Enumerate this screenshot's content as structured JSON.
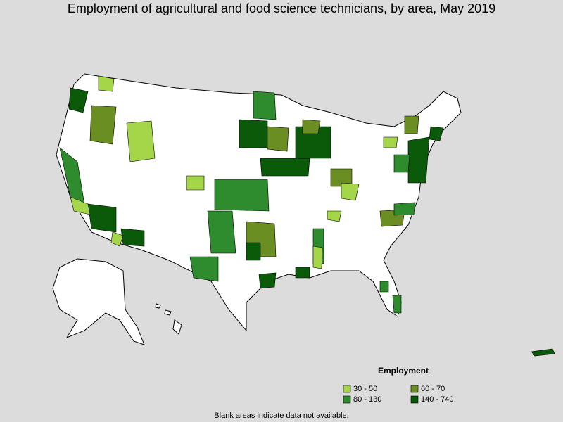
{
  "title": "Employment of agricultural and food science technicians, by area, May 2019",
  "legend": {
    "title": "Employment",
    "items": [
      {
        "label": "30 - 50",
        "color": "#a5d64a"
      },
      {
        "label": "60 - 70",
        "color": "#6b8e23"
      },
      {
        "label": "80 - 130",
        "color": "#2e8b2e"
      },
      {
        "label": "140 - 740",
        "color": "#0a5a0a"
      }
    ]
  },
  "footnote": "Blank areas indicate data not available."
}
